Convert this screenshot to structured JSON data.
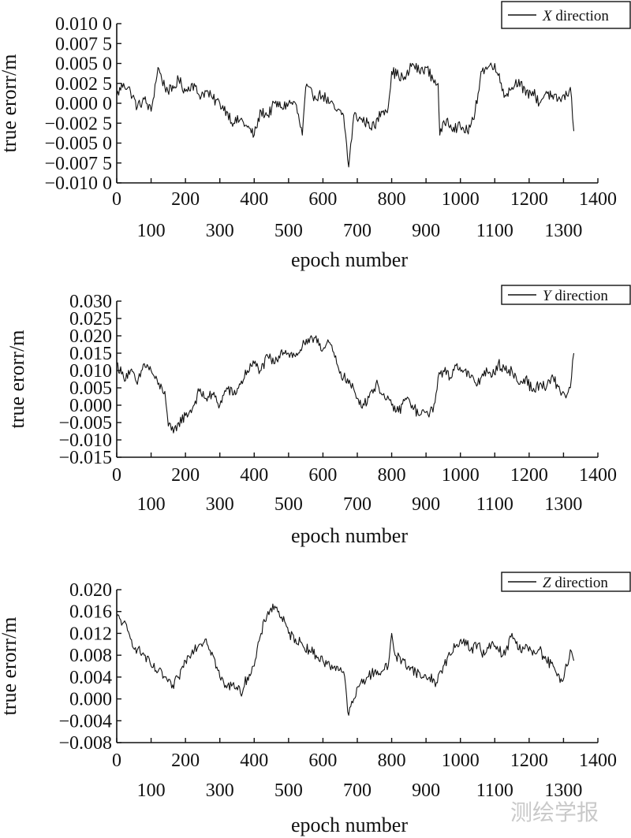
{
  "watermark": "测绘学报",
  "chart_data": [
    {
      "type": "line",
      "legend": {
        "prefix": "X",
        "suffix": " direction",
        "placement": "top-right"
      },
      "xlabel": "epoch number",
      "ylabel": "true erorr/m",
      "xlim": [
        0,
        1400
      ],
      "ylim": [
        -0.01,
        0.01
      ],
      "xticks_top": [
        "0",
        "200",
        "400",
        "600",
        "800",
        "1000",
        "1200",
        "1400"
      ],
      "xticks_bottom": [
        "100",
        "300",
        "500",
        "700",
        "900",
        "1100",
        "1300"
      ],
      "yticks": [
        {
          "v": 0.01,
          "t": "0.010 0"
        },
        {
          "v": 0.0075,
          "t": "0.007 5"
        },
        {
          "v": 0.005,
          "t": "0.005 0"
        },
        {
          "v": 0.0025,
          "t": "0.002 5"
        },
        {
          "v": 0.0,
          "t": "0.000 0"
        },
        {
          "v": -0.0025,
          "t": "−0.002 5"
        },
        {
          "v": -0.005,
          "t": "−0.005 0"
        },
        {
          "v": -0.0075,
          "t": "−0.007 5"
        },
        {
          "v": -0.01,
          "t": "−0.010 0"
        }
      ],
      "grid": false,
      "series": [
        {
          "color": "#111111",
          "points": [
            [
              0,
              0.001
            ],
            [
              20,
              0.0025
            ],
            [
              40,
              0.0015
            ],
            [
              60,
              -0.0005
            ],
            [
              80,
              0.0005
            ],
            [
              100,
              -0.001
            ],
            [
              120,
              0.0045
            ],
            [
              140,
              0.002
            ],
            [
              160,
              0.0015
            ],
            [
              180,
              0.003
            ],
            [
              200,
              0.0015
            ],
            [
              220,
              0.0025
            ],
            [
              240,
              0.001
            ],
            [
              260,
              0.0015
            ],
            [
              280,
              0.0005
            ],
            [
              300,
              0.0
            ],
            [
              320,
              -0.001
            ],
            [
              340,
              -0.0025
            ],
            [
              360,
              -0.002
            ],
            [
              380,
              -0.003
            ],
            [
              400,
              -0.004
            ],
            [
              420,
              -0.001
            ],
            [
              440,
              -0.0015
            ],
            [
              460,
              0.0
            ],
            [
              480,
              -0.0005
            ],
            [
              500,
              0.0
            ],
            [
              520,
              0.0
            ],
            [
              540,
              -0.004
            ],
            [
              550,
              0.002
            ],
            [
              570,
              0.001
            ],
            [
              600,
              0.001
            ],
            [
              620,
              0.0
            ],
            [
              640,
              -0.001
            ],
            [
              660,
              -0.0015
            ],
            [
              675,
              -0.008
            ],
            [
              690,
              -0.0015
            ],
            [
              710,
              -0.002
            ],
            [
              730,
              -0.0025
            ],
            [
              750,
              -0.003
            ],
            [
              770,
              -0.001
            ],
            [
              790,
              -0.0005
            ],
            [
              800,
              0.004
            ],
            [
              820,
              0.0035
            ],
            [
              840,
              0.003
            ],
            [
              860,
              0.005
            ],
            [
              880,
              0.004
            ],
            [
              900,
              0.0045
            ],
            [
              920,
              0.003
            ],
            [
              935,
              0.0025
            ],
            [
              940,
              -0.004
            ],
            [
              960,
              -0.002
            ],
            [
              980,
              -0.003
            ],
            [
              1000,
              -0.003
            ],
            [
              1020,
              -0.0035
            ],
            [
              1040,
              -0.002
            ],
            [
              1060,
              0.004
            ],
            [
              1080,
              0.0045
            ],
            [
              1100,
              0.005
            ],
            [
              1110,
              0.0035
            ],
            [
              1130,
              0.001
            ],
            [
              1150,
              0.002
            ],
            [
              1170,
              0.003
            ],
            [
              1190,
              0.001
            ],
            [
              1210,
              0.0015
            ],
            [
              1230,
              0.0
            ],
            [
              1250,
              0.0015
            ],
            [
              1270,
              0.0005
            ],
            [
              1290,
              0.0005
            ],
            [
              1310,
              0.001
            ],
            [
              1320,
              0.002
            ],
            [
              1330,
              -0.0035
            ]
          ]
        }
      ]
    },
    {
      "type": "line",
      "legend": {
        "prefix": "Y",
        "suffix": " direction",
        "placement": "top-right"
      },
      "xlabel": "epoch number",
      "ylabel": "true erorr/m",
      "xlim": [
        0,
        1400
      ],
      "ylim": [
        -0.015,
        0.03
      ],
      "xticks_top": [
        "0",
        "200",
        "400",
        "600",
        "800",
        "1000",
        "1200",
        "1400"
      ],
      "xticks_bottom": [
        "100",
        "300",
        "500",
        "700",
        "900",
        "1100",
        "1300"
      ],
      "yticks": [
        {
          "v": 0.03,
          "t": "0.030"
        },
        {
          "v": 0.025,
          "t": "0.025"
        },
        {
          "v": 0.02,
          "t": "0.020"
        },
        {
          "v": 0.015,
          "t": "0.015"
        },
        {
          "v": 0.01,
          "t": "0.010"
        },
        {
          "v": 0.005,
          "t": "0.005"
        },
        {
          "v": 0.0,
          "t": "0.000"
        },
        {
          "v": -0.005,
          "t": "−0.005"
        },
        {
          "v": -0.01,
          "t": "−0.010"
        },
        {
          "v": -0.015,
          "t": "−0.015"
        }
      ],
      "grid": false,
      "series": [
        {
          "color": "#111111",
          "points": [
            [
              0,
              0.012
            ],
            [
              20,
              0.008
            ],
            [
              40,
              0.01
            ],
            [
              60,
              0.006
            ],
            [
              80,
              0.012
            ],
            [
              100,
              0.01
            ],
            [
              120,
              0.006
            ],
            [
              140,
              0.004
            ],
            [
              150,
              -0.006
            ],
            [
              165,
              -0.008
            ],
            [
              180,
              -0.005
            ],
            [
              200,
              -0.003
            ],
            [
              220,
              -0.001
            ],
            [
              240,
              0.004
            ],
            [
              260,
              0.002
            ],
            [
              280,
              0.003
            ],
            [
              300,
              0.0
            ],
            [
              320,
              0.005
            ],
            [
              340,
              0.003
            ],
            [
              360,
              0.006
            ],
            [
              380,
              0.01
            ],
            [
              400,
              0.012
            ],
            [
              420,
              0.01
            ],
            [
              440,
              0.014
            ],
            [
              460,
              0.012
            ],
            [
              480,
              0.016
            ],
            [
              500,
              0.015
            ],
            [
              520,
              0.014
            ],
            [
              540,
              0.017
            ],
            [
              560,
              0.018
            ],
            [
              580,
              0.02
            ],
            [
              600,
              0.016
            ],
            [
              620,
              0.018
            ],
            [
              640,
              0.012
            ],
            [
              660,
              0.008
            ],
            [
              680,
              0.006
            ],
            [
              700,
              0.002
            ],
            [
              720,
              0.0
            ],
            [
              740,
              0.004
            ],
            [
              760,
              0.006
            ],
            [
              780,
              0.002
            ],
            [
              800,
              0.0
            ],
            [
              820,
              -0.002
            ],
            [
              840,
              0.002
            ],
            [
              860,
              0.0
            ],
            [
              880,
              -0.003
            ],
            [
              900,
              -0.002
            ],
            [
              920,
              -0.002
            ],
            [
              935,
              0.008
            ],
            [
              950,
              0.01
            ],
            [
              970,
              0.008
            ],
            [
              990,
              0.012
            ],
            [
              1010,
              0.01
            ],
            [
              1030,
              0.008
            ],
            [
              1050,
              0.006
            ],
            [
              1070,
              0.01
            ],
            [
              1090,
              0.008
            ],
            [
              1110,
              0.012
            ],
            [
              1130,
              0.01
            ],
            [
              1150,
              0.01
            ],
            [
              1170,
              0.006
            ],
            [
              1190,
              0.008
            ],
            [
              1210,
              0.004
            ],
            [
              1230,
              0.006
            ],
            [
              1250,
              0.005
            ],
            [
              1270,
              0.008
            ],
            [
              1290,
              0.004
            ],
            [
              1310,
              0.003
            ],
            [
              1320,
              0.005
            ],
            [
              1330,
              0.015
            ]
          ]
        }
      ]
    },
    {
      "type": "line",
      "legend": {
        "prefix": "Z",
        "suffix": " direction",
        "placement": "top-right"
      },
      "xlabel": "epoch number",
      "ylabel": "true erorr/m",
      "xlim": [
        0,
        1400
      ],
      "ylim": [
        -0.008,
        0.02
      ],
      "xticks_top": [
        "0",
        "200",
        "400",
        "600",
        "800",
        "1000",
        "1200",
        "1400"
      ],
      "xticks_bottom": [
        "100",
        "300",
        "500",
        "700",
        "900",
        "1100",
        "1300"
      ],
      "yticks": [
        {
          "v": 0.02,
          "t": "0.020"
        },
        {
          "v": 0.016,
          "t": "0.016"
        },
        {
          "v": 0.012,
          "t": "0.012"
        },
        {
          "v": 0.008,
          "t": "0.008"
        },
        {
          "v": 0.004,
          "t": "0.004"
        },
        {
          "v": 0.0,
          "t": "0.000"
        },
        {
          "v": -0.004,
          "t": "−0.004"
        },
        {
          "v": -0.008,
          "t": "−0.008"
        }
      ],
      "grid": false,
      "series": [
        {
          "color": "#111111",
          "points": [
            [
              0,
              0.015
            ],
            [
              20,
              0.014
            ],
            [
              40,
              0.011
            ],
            [
              60,
              0.009
            ],
            [
              80,
              0.008
            ],
            [
              100,
              0.006
            ],
            [
              120,
              0.005
            ],
            [
              140,
              0.004
            ],
            [
              160,
              0.002
            ],
            [
              180,
              0.004
            ],
            [
              200,
              0.007
            ],
            [
              220,
              0.009
            ],
            [
              240,
              0.01
            ],
            [
              260,
              0.011
            ],
            [
              280,
              0.008
            ],
            [
              300,
              0.004
            ],
            [
              320,
              0.002
            ],
            [
              340,
              0.003
            ],
            [
              360,
              0.001
            ],
            [
              380,
              0.004
            ],
            [
              400,
              0.006
            ],
            [
              420,
              0.012
            ],
            [
              440,
              0.016
            ],
            [
              460,
              0.017
            ],
            [
              480,
              0.015
            ],
            [
              500,
              0.012
            ],
            [
              520,
              0.011
            ],
            [
              540,
              0.01
            ],
            [
              560,
              0.009
            ],
            [
              580,
              0.008
            ],
            [
              600,
              0.007
            ],
            [
              620,
              0.006
            ],
            [
              640,
              0.006
            ],
            [
              660,
              0.005
            ],
            [
              675,
              -0.003
            ],
            [
              690,
              0.0
            ],
            [
              710,
              0.003
            ],
            [
              730,
              0.004
            ],
            [
              750,
              0.005
            ],
            [
              770,
              0.005
            ],
            [
              790,
              0.006
            ],
            [
              800,
              0.012
            ],
            [
              810,
              0.008
            ],
            [
              830,
              0.007
            ],
            [
              850,
              0.006
            ],
            [
              870,
              0.005
            ],
            [
              890,
              0.004
            ],
            [
              910,
              0.004
            ],
            [
              930,
              0.003
            ],
            [
              950,
              0.006
            ],
            [
              970,
              0.008
            ],
            [
              990,
              0.01
            ],
            [
              1010,
              0.011
            ],
            [
              1030,
              0.009
            ],
            [
              1050,
              0.01
            ],
            [
              1070,
              0.008
            ],
            [
              1090,
              0.01
            ],
            [
              1110,
              0.009
            ],
            [
              1130,
              0.008
            ],
            [
              1150,
              0.012
            ],
            [
              1170,
              0.009
            ],
            [
              1190,
              0.01
            ],
            [
              1210,
              0.008
            ],
            [
              1230,
              0.009
            ],
            [
              1250,
              0.007
            ],
            [
              1270,
              0.006
            ],
            [
              1290,
              0.003
            ],
            [
              1310,
              0.006
            ],
            [
              1320,
              0.009
            ],
            [
              1330,
              0.007
            ]
          ]
        }
      ]
    }
  ]
}
